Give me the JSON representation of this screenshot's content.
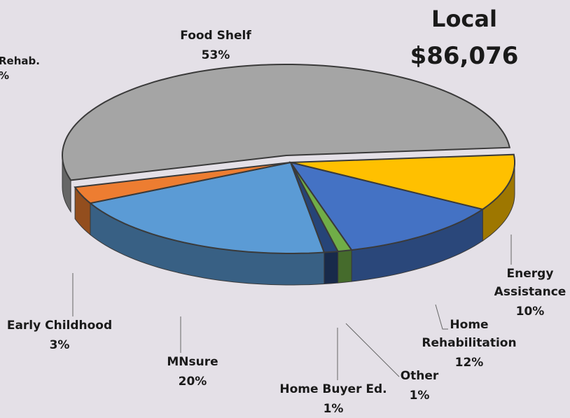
{
  "chart_data": {
    "type": "pie",
    "title": "Local",
    "subtitle": "$86,076",
    "categories": [
      "Food Shelf",
      "Energy Assistance",
      "Home Rehabilitation",
      "Other",
      "Home Buyer Ed.",
      "MNsure",
      "Early Childhood"
    ],
    "values": [
      53,
      10,
      12,
      1,
      1,
      20,
      3
    ],
    "value_labels": [
      "53%",
      "10%",
      "12%",
      "1%",
      "1%",
      "20%",
      "3%"
    ],
    "colors": [
      "#a5a5a5",
      "#ffc000",
      "#4472c4",
      "#70ad47",
      "#264478",
      "#5b9bd5",
      "#ed7d31"
    ],
    "clipped_label": [
      "Rehab.",
      "%"
    ]
  }
}
